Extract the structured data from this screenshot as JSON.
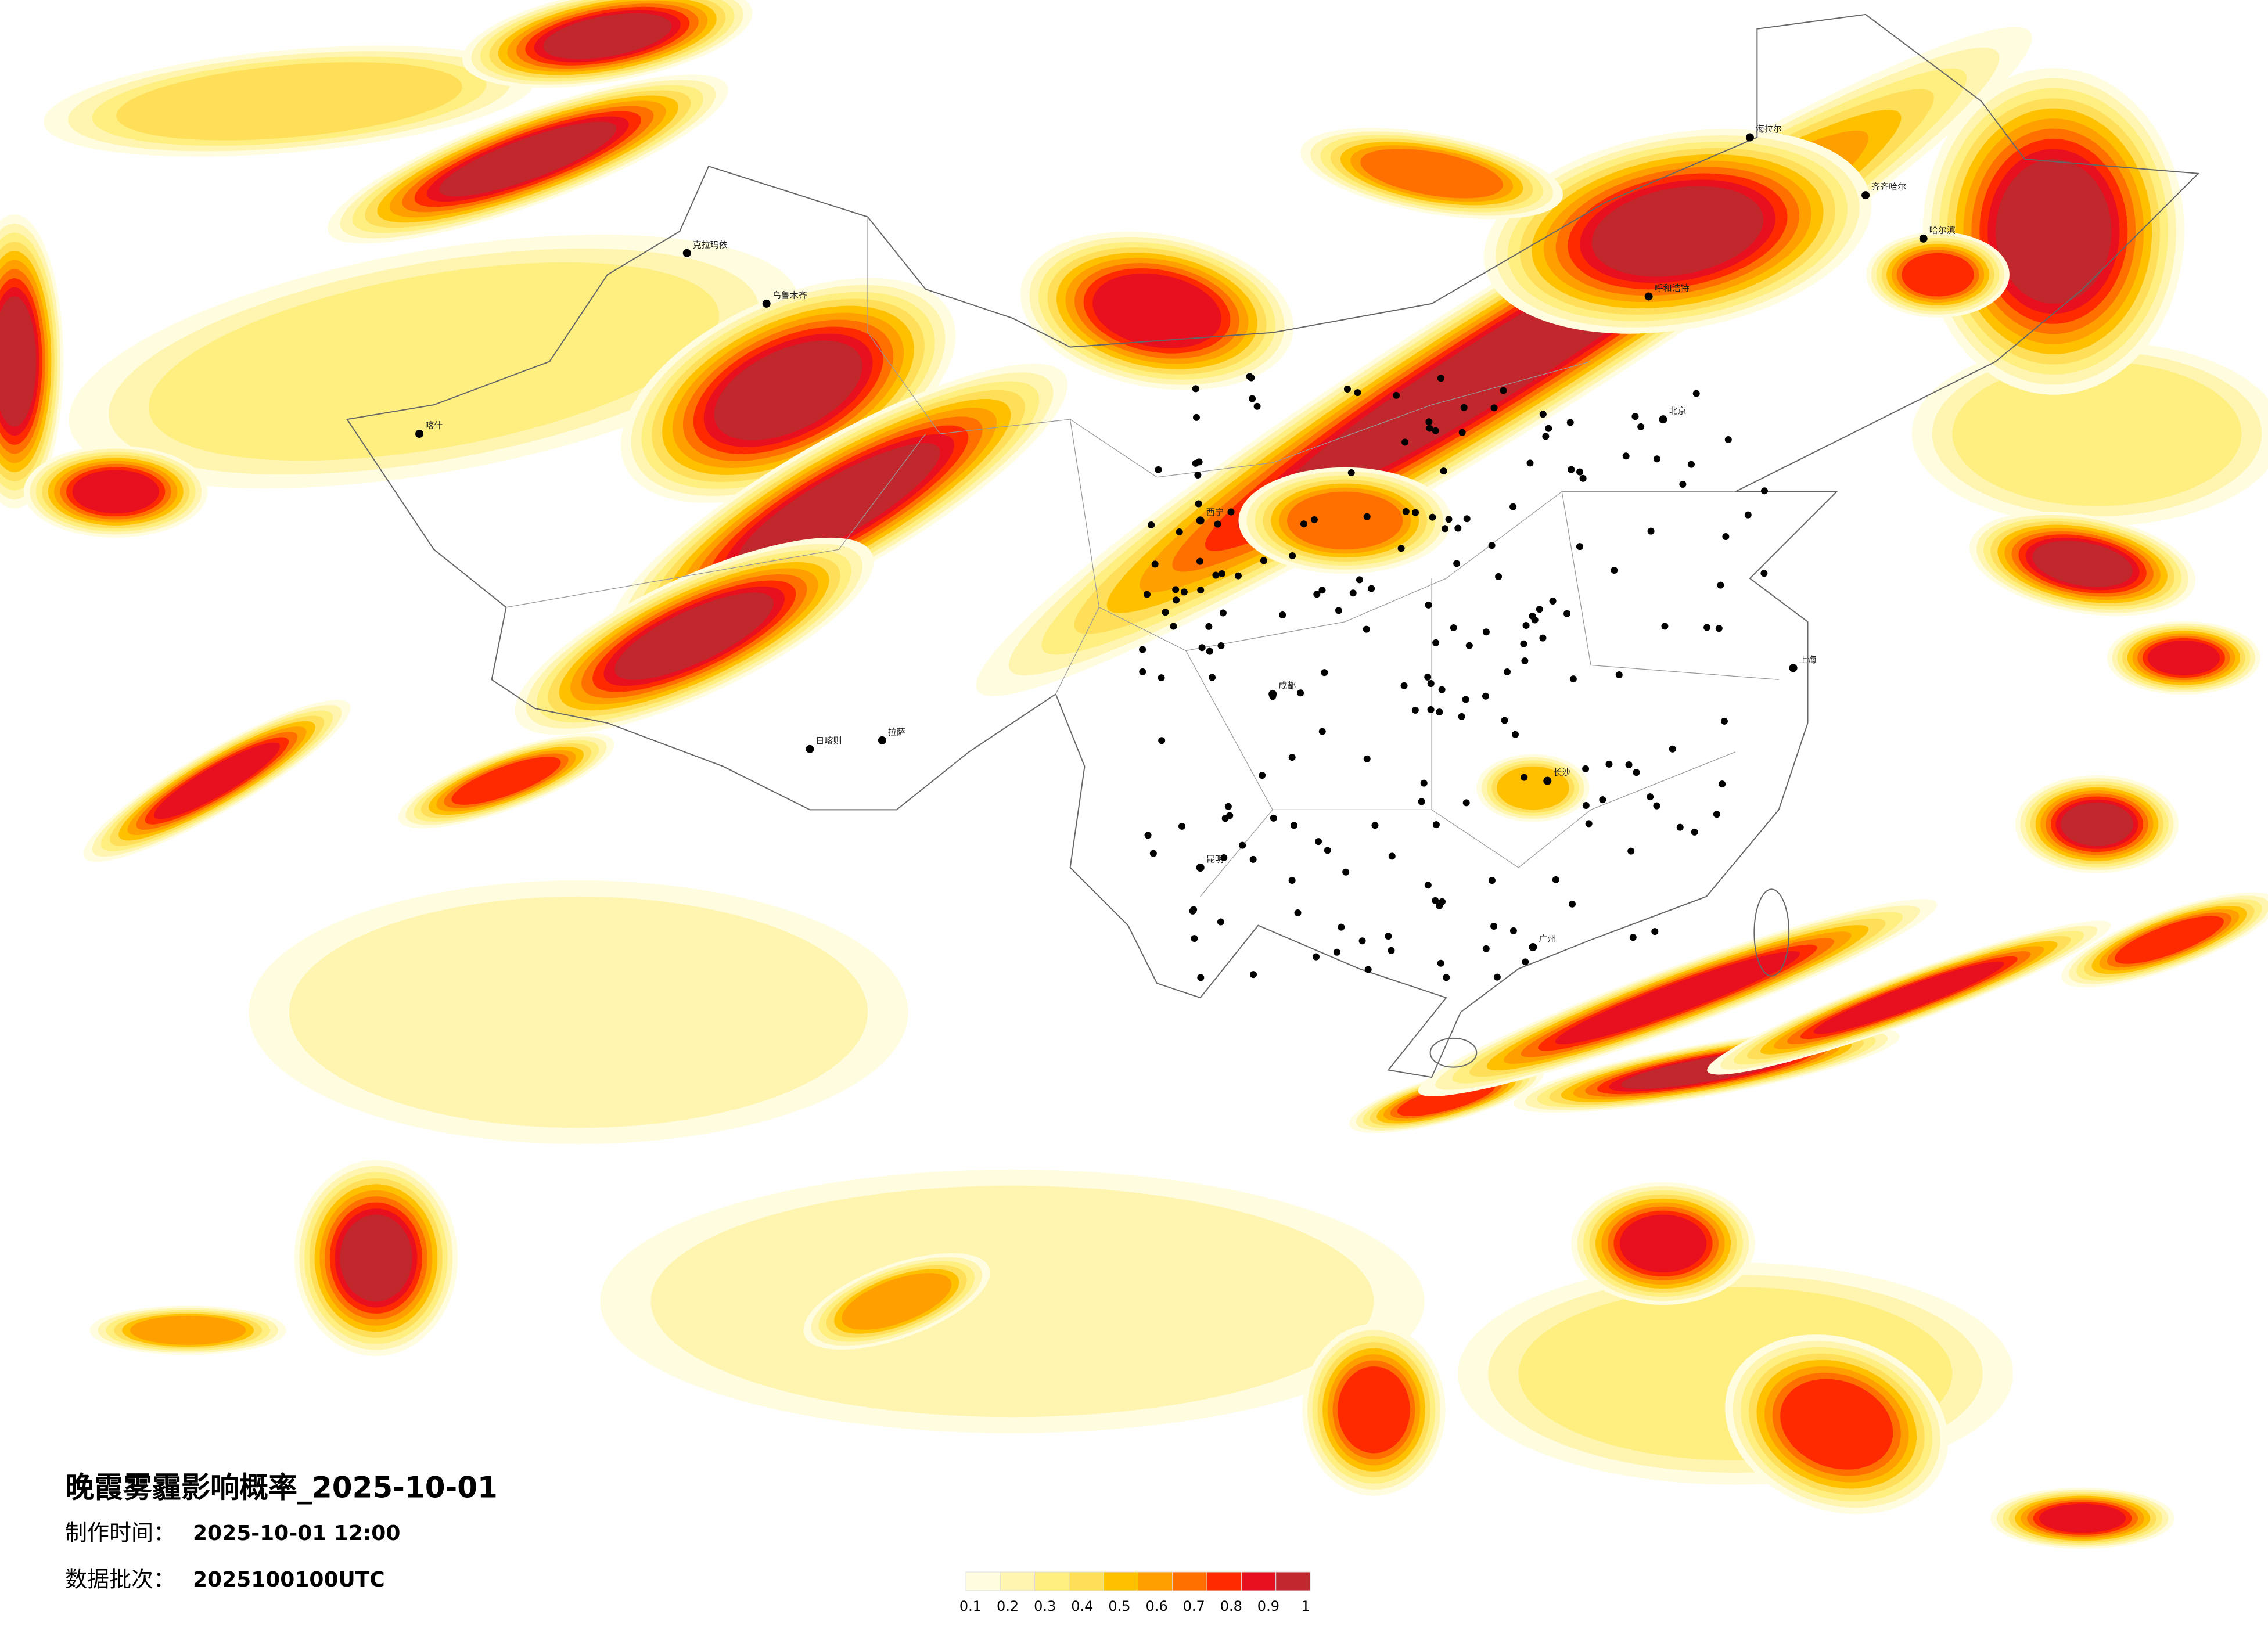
{
  "title": "晚霞雾霾影响概率_2025-10-01",
  "production_time": {
    "label": "制作时间：",
    "value": "2025-10-01 12:00"
  },
  "batch": {
    "label": "数据批次：",
    "value": "2025100100UTC"
  },
  "legend": {
    "ticks": [
      0.1,
      0.2,
      0.3,
      0.4,
      0.5,
      0.6,
      0.7,
      0.8,
      0.9,
      1
    ],
    "colors": [
      "#fffce0",
      "#fff5b0",
      "#ffee80",
      "#ffdf5a",
      "#ffc000",
      "#ffa000",
      "#ff7000",
      "#ff2a00",
      "#e8101e",
      "#c0282e"
    ]
  },
  "cities": [
    {
      "name": "乌鲁木齐"
    },
    {
      "name": "克拉玛依"
    },
    {
      "name": "喀什"
    },
    {
      "name": "拉萨"
    },
    {
      "name": "日喀则"
    },
    {
      "name": "呼和浩特"
    },
    {
      "name": "北京"
    },
    {
      "name": "哈尔滨"
    },
    {
      "name": "成都"
    },
    {
      "name": "广州"
    },
    {
      "name": "上海"
    },
    {
      "name": "西宁"
    },
    {
      "name": "长沙"
    },
    {
      "name": "昆明"
    },
    {
      "name": "齐齐哈尔"
    },
    {
      "name": "海拉尔"
    }
  ]
}
